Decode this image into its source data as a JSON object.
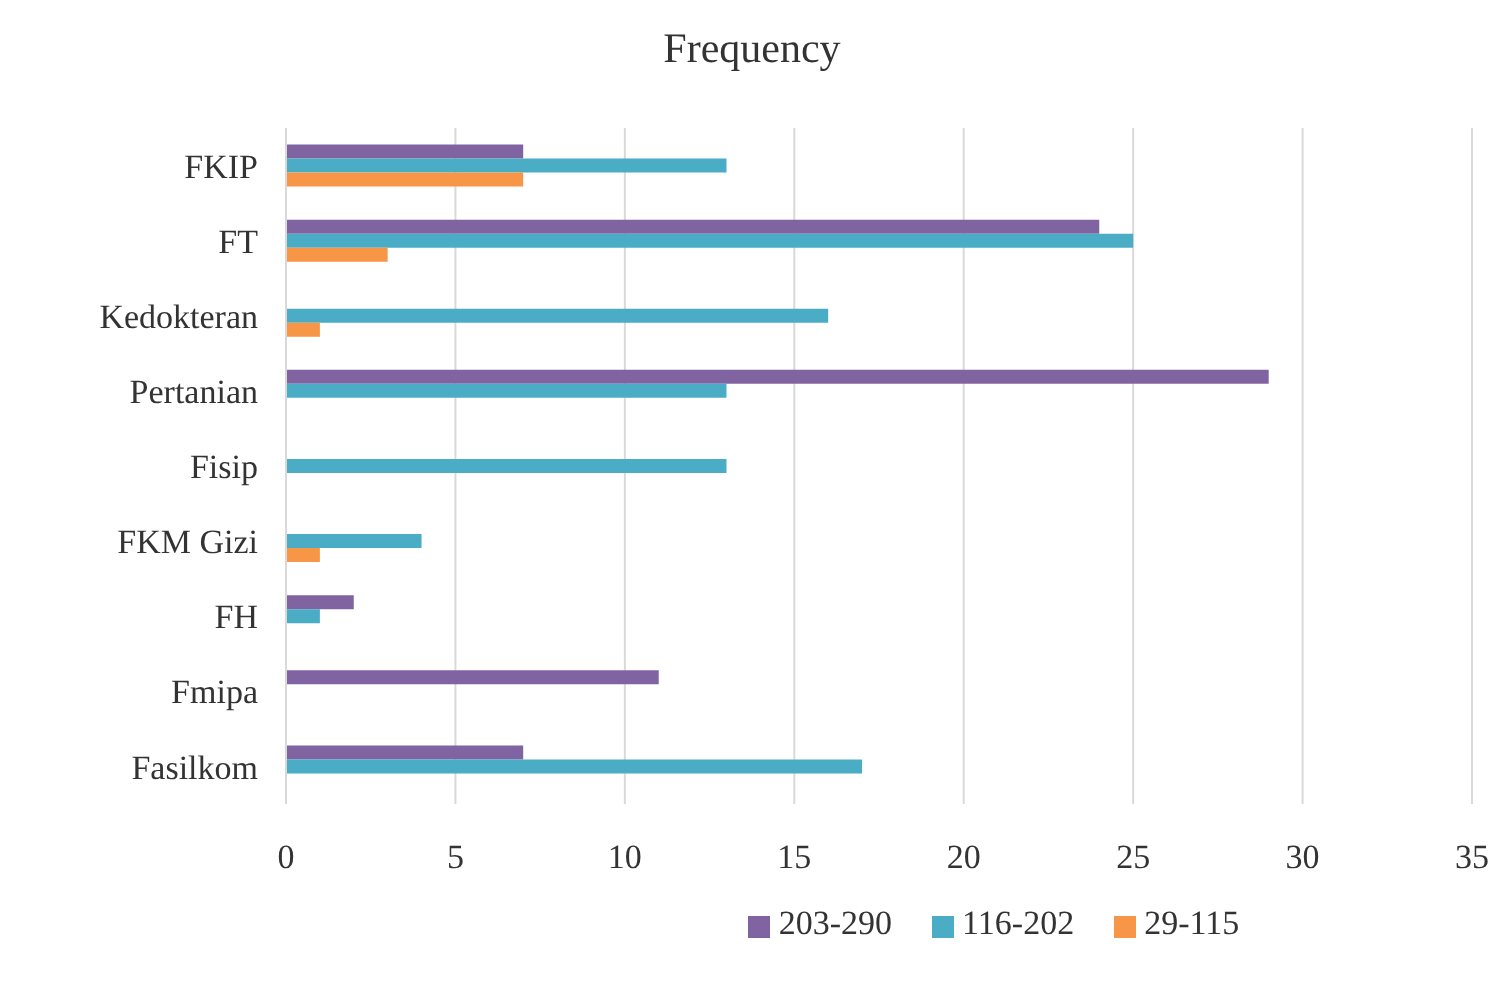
{
  "chart_data": {
    "type": "bar",
    "orientation": "horizontal",
    "title": "Frequency",
    "categories": [
      "FKIP",
      "FT",
      "Kedokteran",
      "Pertanian",
      "Fisip",
      "FKM Gizi",
      "FH",
      "Fmipa",
      "Fasilkom"
    ],
    "series": [
      {
        "name": "203-290",
        "color": "#8064a2",
        "values": [
          7,
          24,
          null,
          29,
          null,
          null,
          2,
          11,
          7
        ]
      },
      {
        "name": "116-202",
        "color": "#4bacc6",
        "values": [
          13,
          25,
          16,
          13,
          13,
          4,
          1,
          null,
          17
        ]
      },
      {
        "name": "29-115",
        "color": "#f79646",
        "values": [
          7,
          3,
          1,
          null,
          null,
          1,
          null,
          null,
          null
        ]
      }
    ],
    "xlim": [
      0,
      35
    ],
    "xticks": [
      0,
      5,
      10,
      15,
      20,
      25,
      30,
      35
    ],
    "grid": "x",
    "legend": "bottom"
  }
}
